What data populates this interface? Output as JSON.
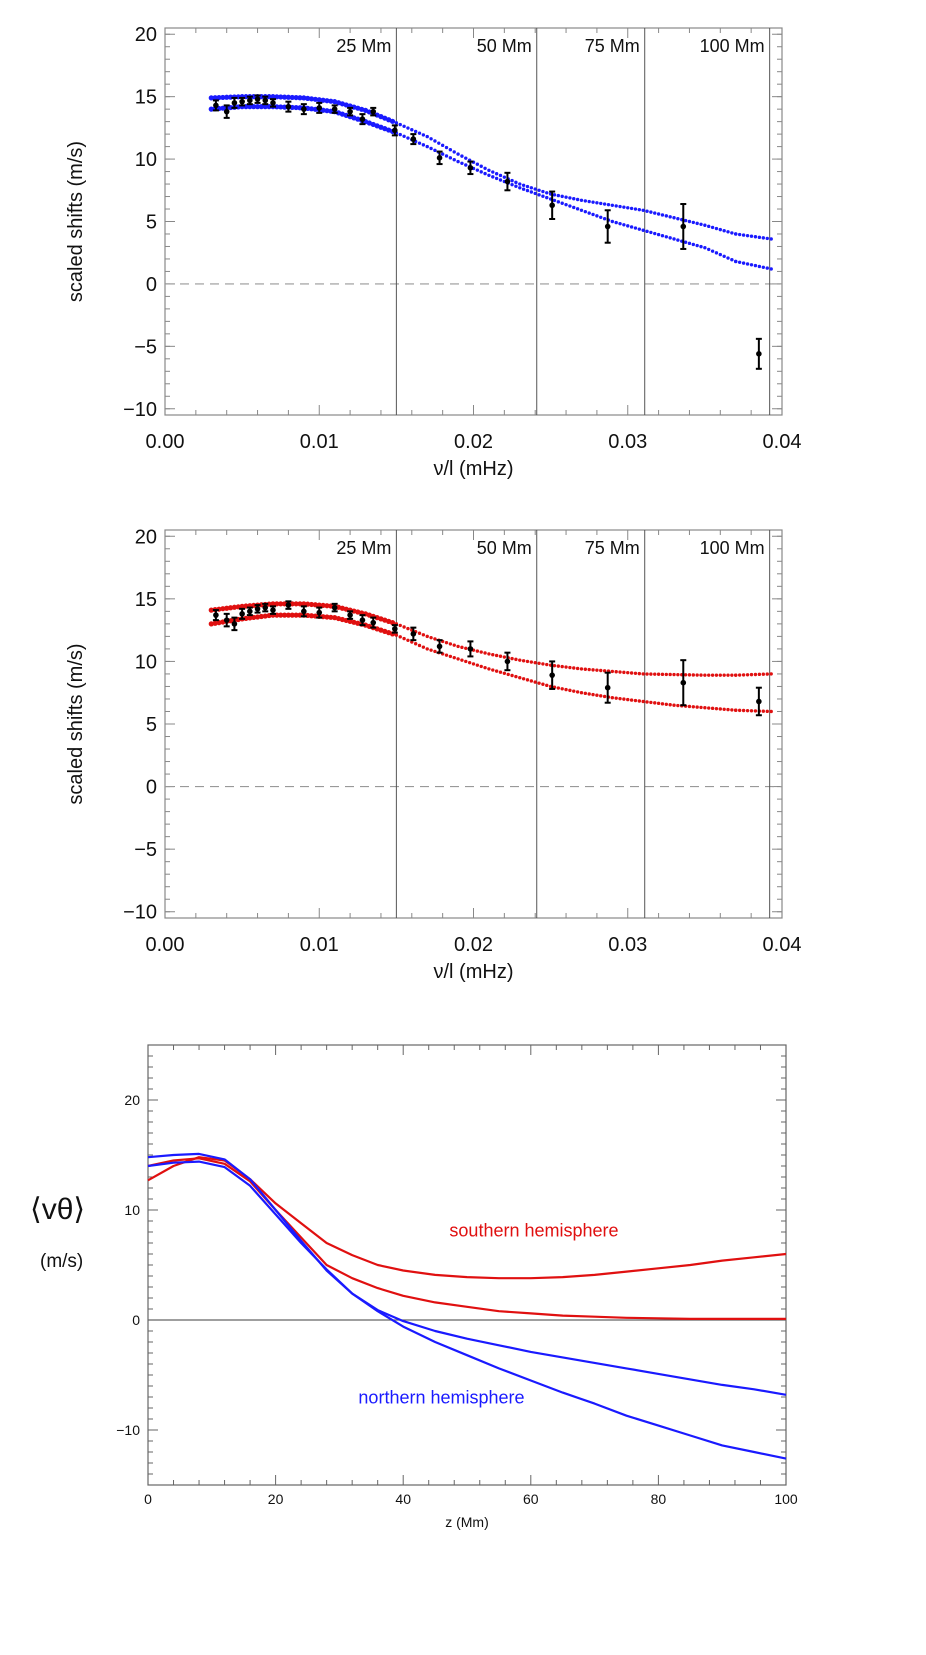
{
  "chart_data": [
    {
      "type": "scatter",
      "xlabel": "ν/l (mHz)",
      "ylabel": "scaled shifts (m/s)",
      "xlim": [
        0.0,
        0.04
      ],
      "ylim": [
        -10.5,
        20.5
      ],
      "xticks": [
        "0.00",
        "0.01",
        "0.02",
        "0.03",
        "0.04"
      ],
      "yticks": [
        "−10",
        "−5",
        "0",
        "5",
        "10",
        "15",
        "20"
      ],
      "zero_line": "dashed",
      "depth_markers": [
        {
          "label": "25 Mm",
          "x": 0.015
        },
        {
          "label": "50 Mm",
          "x": 0.0241
        },
        {
          "label": "75 Mm",
          "x": 0.0311
        },
        {
          "label": "100 Mm",
          "x": 0.0392
        }
      ],
      "curve_color": "#1a1aff",
      "model_curves": [
        {
          "x": [
            0.003,
            0.005,
            0.007,
            0.009,
            0.011,
            0.013,
            0.015,
            0.017,
            0.019,
            0.021,
            0.023,
            0.025,
            0.027,
            0.029,
            0.031,
            0.033,
            0.035,
            0.037,
            0.0393
          ],
          "y": [
            14.9,
            15.0,
            15.0,
            14.9,
            14.6,
            13.9,
            12.9,
            11.8,
            10.4,
            9.1,
            8.0,
            7.2,
            6.7,
            6.3,
            5.9,
            5.3,
            4.7,
            4.0,
            3.6
          ]
        },
        {
          "x": [
            0.003,
            0.005,
            0.007,
            0.009,
            0.011,
            0.013,
            0.015,
            0.017,
            0.019,
            0.021,
            0.023,
            0.025,
            0.027,
            0.029,
            0.031,
            0.033,
            0.035,
            0.037,
            0.0393
          ],
          "y": [
            14.0,
            14.2,
            14.2,
            14.1,
            13.8,
            13.0,
            12.1,
            11.0,
            9.8,
            8.7,
            7.7,
            6.8,
            5.9,
            5.0,
            4.3,
            3.6,
            2.9,
            1.8,
            1.2
          ]
        }
      ],
      "measurements": {
        "x": [
          0.0033,
          0.004,
          0.0045,
          0.005,
          0.0055,
          0.006,
          0.0065,
          0.007,
          0.008,
          0.009,
          0.01,
          0.011,
          0.012,
          0.0128,
          0.0135,
          0.0149,
          0.0161,
          0.0178,
          0.0198,
          0.0222,
          0.0251,
          0.0287,
          0.0336,
          0.0385
        ],
        "y": [
          14.3,
          13.8,
          14.5,
          14.6,
          14.7,
          14.8,
          14.7,
          14.5,
          14.2,
          14.0,
          14.1,
          14.0,
          13.8,
          13.2,
          13.8,
          12.3,
          11.6,
          10.1,
          9.3,
          8.2,
          6.3,
          4.6,
          4.6,
          -5.6
        ],
        "err": [
          0.4,
          0.5,
          0.4,
          0.3,
          0.3,
          0.3,
          0.3,
          0.3,
          0.4,
          0.4,
          0.4,
          0.3,
          0.3,
          0.4,
          0.3,
          0.4,
          0.4,
          0.5,
          0.5,
          0.7,
          1.1,
          1.3,
          1.8,
          1.2
        ]
      }
    },
    {
      "type": "scatter",
      "xlabel": "ν/l (mHz)",
      "ylabel": "scaled shifts (m/s)",
      "xlim": [
        0.0,
        0.04
      ],
      "ylim": [
        -10.5,
        20.5
      ],
      "xticks": [
        "0.00",
        "0.01",
        "0.02",
        "0.03",
        "0.04"
      ],
      "yticks": [
        "−10",
        "−5",
        "0",
        "5",
        "10",
        "15",
        "20"
      ],
      "zero_line": "dashed",
      "depth_markers": [
        {
          "label": "25 Mm",
          "x": 0.015
        },
        {
          "label": "50 Mm",
          "x": 0.0241
        },
        {
          "label": "75 Mm",
          "x": 0.0311
        },
        {
          "label": "100 Mm",
          "x": 0.0392
        }
      ],
      "curve_color": "#e01010",
      "model_curves": [
        {
          "x": [
            0.003,
            0.005,
            0.007,
            0.009,
            0.011,
            0.013,
            0.015,
            0.017,
            0.019,
            0.021,
            0.023,
            0.025,
            0.027,
            0.029,
            0.031,
            0.033,
            0.035,
            0.037,
            0.0393
          ],
          "y": [
            14.1,
            14.4,
            14.6,
            14.6,
            14.4,
            13.8,
            13.0,
            12.0,
            11.2,
            10.6,
            10.1,
            9.7,
            9.4,
            9.2,
            9.0,
            8.95,
            8.9,
            8.9,
            9.0
          ]
        },
        {
          "x": [
            0.003,
            0.005,
            0.007,
            0.009,
            0.011,
            0.013,
            0.015,
            0.017,
            0.019,
            0.021,
            0.023,
            0.025,
            0.027,
            0.029,
            0.031,
            0.033,
            0.035,
            0.037,
            0.0393
          ],
          "y": [
            13.0,
            13.4,
            13.7,
            13.7,
            13.5,
            12.9,
            12.1,
            11.0,
            10.2,
            9.4,
            8.7,
            8.0,
            7.5,
            7.1,
            6.8,
            6.5,
            6.3,
            6.1,
            6.0
          ]
        }
      ],
      "measurements": {
        "x": [
          0.0033,
          0.004,
          0.0045,
          0.005,
          0.0055,
          0.006,
          0.0065,
          0.007,
          0.008,
          0.009,
          0.01,
          0.011,
          0.012,
          0.0128,
          0.0135,
          0.0149,
          0.0161,
          0.0178,
          0.0198,
          0.0222,
          0.0251,
          0.0287,
          0.0336,
          0.0385
        ],
        "y": [
          13.7,
          13.3,
          13.0,
          13.8,
          14.0,
          14.2,
          14.3,
          14.1,
          14.5,
          14.0,
          13.9,
          14.3,
          13.7,
          13.3,
          13.1,
          12.6,
          12.2,
          11.2,
          11.0,
          10.0,
          8.9,
          7.9,
          8.3,
          6.8
        ],
        "err": [
          0.4,
          0.5,
          0.5,
          0.4,
          0.3,
          0.3,
          0.3,
          0.3,
          0.3,
          0.4,
          0.4,
          0.3,
          0.3,
          0.4,
          0.4,
          0.3,
          0.5,
          0.5,
          0.6,
          0.7,
          1.1,
          1.2,
          1.8,
          1.1
        ]
      }
    },
    {
      "type": "line",
      "xlabel": "z (Mm)",
      "ylabel": "⟨vθ⟩",
      "ylabel_unit": "(m/s)",
      "xlim": [
        0,
        100
      ],
      "ylim": [
        -15,
        25
      ],
      "xticks": [
        "0",
        "20",
        "40",
        "60",
        "80",
        "100"
      ],
      "yticks": [
        "−10",
        "0",
        "10",
        "20"
      ],
      "zero_line": "solid",
      "x": [
        0,
        4,
        8,
        12,
        16,
        20,
        24,
        28,
        32,
        36,
        40,
        45,
        50,
        55,
        60,
        65,
        70,
        75,
        80,
        85,
        90,
        95,
        100
      ],
      "series": [
        {
          "name": "southern hemisphere",
          "color": "#e01010",
          "y": [
            12.7,
            14.0,
            14.8,
            14.5,
            12.8,
            10.6,
            8.8,
            7.0,
            5.9,
            5.0,
            4.5,
            4.1,
            3.9,
            3.8,
            3.8,
            3.9,
            4.1,
            4.4,
            4.7,
            5.0,
            5.4,
            5.7,
            6.0
          ]
        },
        {
          "name": "southern hemisphere",
          "color": "#e01010",
          "label_shown": false,
          "y": [
            14.0,
            14.5,
            14.7,
            14.2,
            12.6,
            10.0,
            7.5,
            5.0,
            3.8,
            2.9,
            2.2,
            1.6,
            1.2,
            0.8,
            0.6,
            0.4,
            0.3,
            0.2,
            0.15,
            0.1,
            0.1,
            0.1,
            0.1
          ]
        },
        {
          "name": "northern hemisphere",
          "color": "#1a1aff",
          "y": [
            14.8,
            15.0,
            15.1,
            14.6,
            12.8,
            10.0,
            7.2,
            4.5,
            2.4,
            0.9,
            -0.1,
            -1.0,
            -1.7,
            -2.3,
            -2.9,
            -3.4,
            -3.9,
            -4.4,
            -4.9,
            -5.4,
            -5.9,
            -6.3,
            -6.8
          ]
        },
        {
          "name": "northern hemisphere",
          "color": "#1a1aff",
          "label_shown": false,
          "y": [
            14.0,
            14.3,
            14.4,
            13.9,
            12.2,
            9.6,
            7.0,
            4.6,
            2.4,
            0.8,
            -0.6,
            -2.0,
            -3.2,
            -4.4,
            -5.5,
            -6.6,
            -7.6,
            -8.7,
            -9.6,
            -10.5,
            -11.4,
            -12.0,
            -12.6
          ]
        }
      ],
      "annotations": [
        {
          "text": "southern hemisphere",
          "color": "#e01010"
        },
        {
          "text": "northern hemisphere",
          "color": "#1a1aff"
        }
      ]
    }
  ]
}
